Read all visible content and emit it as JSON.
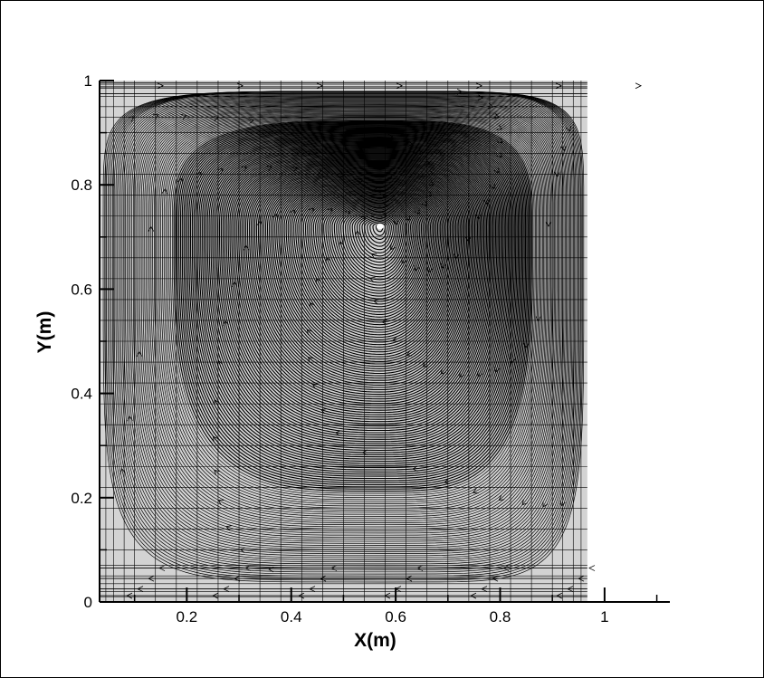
{
  "chart_data": {
    "type": "streamline",
    "title": "",
    "xlabel": "X(m)",
    "ylabel": "Y(m)",
    "xlim": [
      0.033,
      1.125
    ],
    "ylim": [
      0,
      1
    ],
    "xticks": [
      {
        "value": 0.2,
        "label": "0.2"
      },
      {
        "value": 0.4,
        "label": "0.4"
      },
      {
        "value": 0.6,
        "label": "0.6"
      },
      {
        "value": 0.8,
        "label": "0.8"
      },
      {
        "value": 1.0,
        "label": "1"
      }
    ],
    "yticks": [
      {
        "value": 0,
        "label": "0"
      },
      {
        "value": 0.2,
        "label": "0.2"
      },
      {
        "value": 0.4,
        "label": "0.4"
      },
      {
        "value": 0.6,
        "label": "0.6"
      },
      {
        "value": 0.8,
        "label": "0.8"
      },
      {
        "value": 1.0,
        "label": "1"
      }
    ],
    "domain": {
      "x": [
        0.033,
        0.967
      ],
      "y": [
        0,
        1
      ]
    },
    "vortex_center": {
      "x": 0.57,
      "y": 0.72
    },
    "grid": true,
    "colors": {
      "fill": "#d3d3d3",
      "lines": "#000000",
      "background": "#ffffff"
    }
  }
}
